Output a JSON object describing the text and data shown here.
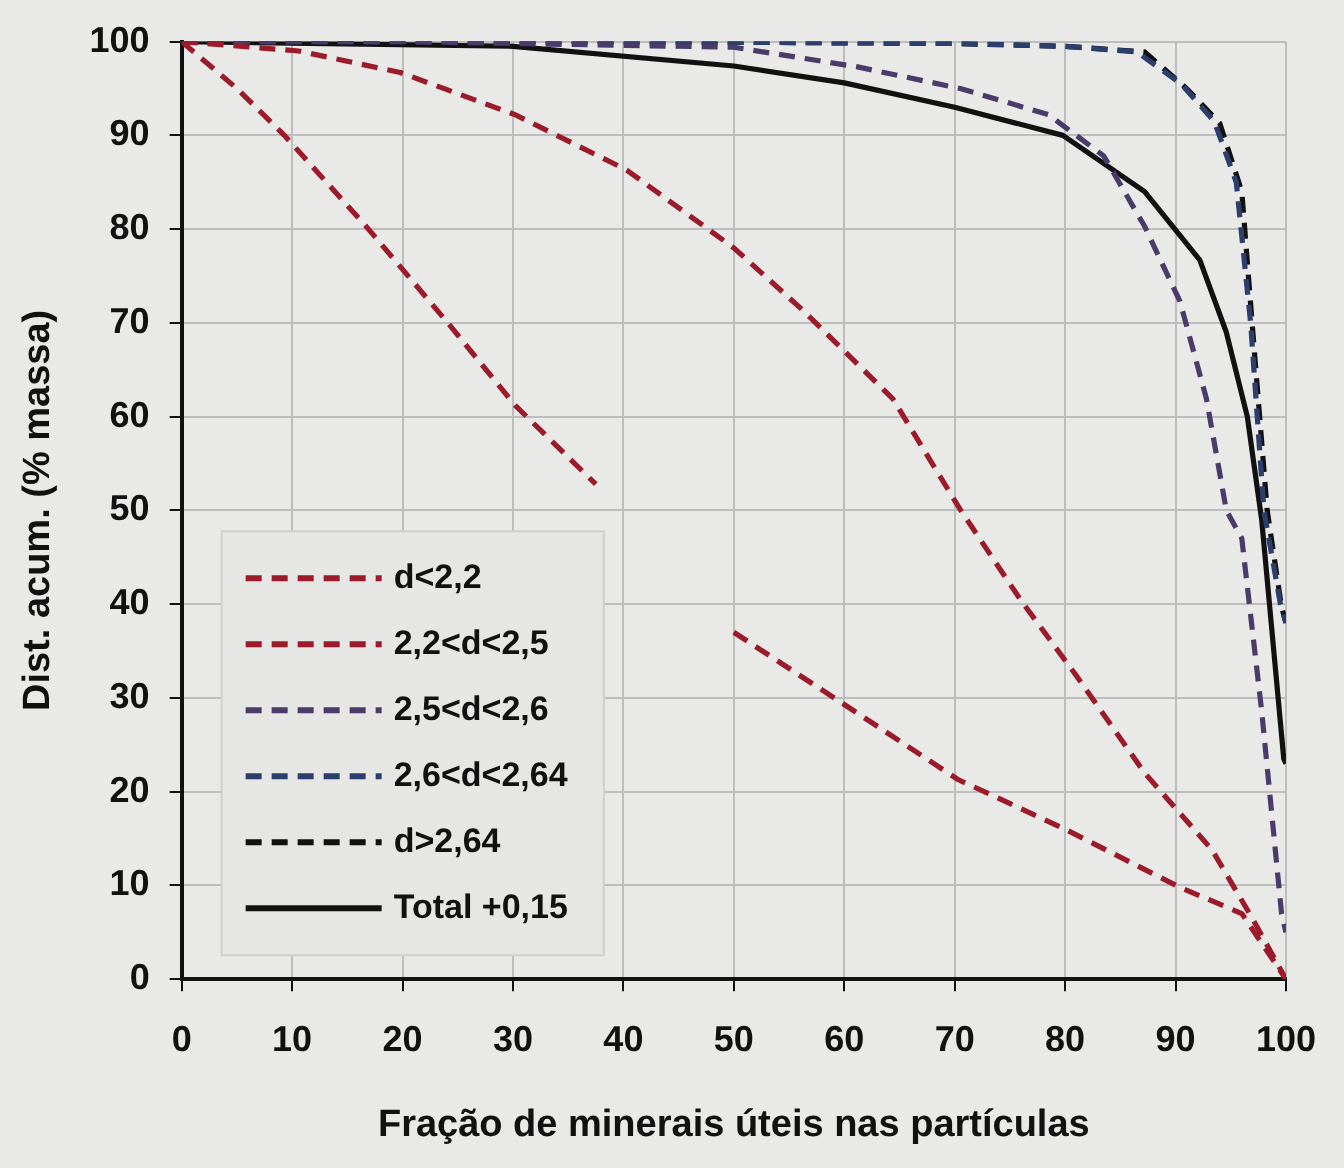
{
  "chart_data": {
    "type": "line",
    "xlabel": "Fração de minerais úteis nas partículas",
    "ylabel": "Dist. acum. (% massa)",
    "xlim": [
      0,
      100
    ],
    "ylim": [
      0,
      100
    ],
    "xticks": [
      0,
      10,
      20,
      30,
      40,
      50,
      60,
      70,
      80,
      90,
      100
    ],
    "yticks": [
      0,
      10,
      20,
      30,
      40,
      50,
      60,
      70,
      80,
      90,
      100
    ],
    "grid": true,
    "legend": "bottom left",
    "marker": "none",
    "series": [
      {
        "name": "d<2,2",
        "color": "#9b1b2a",
        "line_style": "dashed",
        "x": [
          0,
          5,
          9.3,
          16.7,
          24.1,
          30.2,
          37.5,
          44,
          50,
          60,
          70.3,
          80,
          90.4,
          96,
          100
        ],
        "values": [
          100,
          95,
          90,
          80.3,
          70,
          61.2,
          52.8,
          null,
          37,
          29.3,
          21.3,
          16,
          9.8,
          7,
          0
        ]
      },
      {
        "name": "2,2<d<2,5",
        "color": "#9b1b2a",
        "line_style": "dashed",
        "x": [
          0,
          10.6,
          19.8,
          30.2,
          40.3,
          50,
          56.2,
          64.4,
          70.5,
          76,
          81,
          87.2,
          93.3,
          97,
          100
        ],
        "values": [
          100,
          99,
          96.7,
          92.2,
          86.3,
          78,
          71.4,
          61.9,
          50.1,
          40.4,
          32.4,
          22,
          13.8,
          6.4,
          0
        ]
      },
      {
        "name": "2,5<d<2,6",
        "color": "#4a3b6b",
        "line_style": "dashed",
        "x": [
          0,
          20,
          40,
          50,
          61.2,
          70.5,
          78.5,
          83.5,
          87.2,
          90.4,
          92.8,
          94.6,
          96,
          97.8,
          99.6,
          100
        ],
        "values": [
          100,
          100,
          99.6,
          99.4,
          97.3,
          95,
          92.2,
          87.8,
          80.3,
          72.3,
          61.9,
          50,
          47,
          28.6,
          7,
          5
        ]
      },
      {
        "name": "2,6<d<2,64",
        "color": "#2c3e6b",
        "line_style": "dashed",
        "x": [
          0,
          40,
          70,
          80,
          86.5,
          90.5,
          93.5,
          95.5,
          96.8,
          98,
          99.5,
          100
        ],
        "values": [
          100,
          100,
          99.8,
          99.5,
          98.9,
          95.5,
          91.5,
          85,
          70,
          50,
          40,
          38
        ]
      },
      {
        "name": "d>2,64",
        "color": "#111111",
        "line_style": "dashed",
        "x": [
          0,
          40,
          70,
          80,
          87.2,
          91,
          94,
          96,
          97,
          98.3,
          99.6,
          100
        ],
        "values": [
          100,
          100,
          99.8,
          99.5,
          98.9,
          95,
          91.3,
          84,
          69,
          50,
          39.7,
          38
        ]
      },
      {
        "name": "Total +0,15",
        "color": "#111111",
        "line_style": "solid",
        "x": [
          0,
          30,
          50,
          60,
          70,
          79.8,
          87.2,
          92.2,
          94.6,
          96.5,
          97.8,
          99.8,
          100
        ],
        "values": [
          100,
          99.5,
          97.4,
          95.6,
          93,
          90,
          84,
          76.7,
          69,
          60,
          49,
          23.5,
          23
        ]
      }
    ]
  }
}
